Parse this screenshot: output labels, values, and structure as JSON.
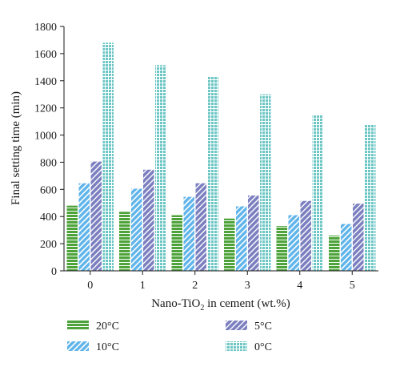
{
  "chart_data": {
    "type": "bar",
    "categories": [
      "0",
      "1",
      "2",
      "3",
      "4",
      "5"
    ],
    "series": [
      {
        "name": "20°C",
        "color": "#4da33a",
        "pattern": "horizontal-lines",
        "values": [
          480,
          435,
          410,
          385,
          330,
          260
        ]
      },
      {
        "name": "10°C",
        "color": "#5fb4ea",
        "pattern": "diagonal-lines",
        "values": [
          645,
          605,
          545,
          475,
          410,
          345
        ]
      },
      {
        "name": "5°C",
        "color": "#7b7fbf",
        "pattern": "diagonal-lines",
        "values": [
          805,
          745,
          645,
          555,
          515,
          495
        ]
      },
      {
        "name": "0°C",
        "color": "#6cc6c4",
        "pattern": "grid",
        "values": [
          1680,
          1515,
          1430,
          1300,
          1150,
          1080
        ]
      }
    ],
    "xlabel_prefix": "Nano-TiO",
    "xlabel_subscript": "2",
    "xlabel_suffix": " in cement (wt.%)",
    "ylabel": "Final setting time (min)",
    "ylim": [
      0,
      1800
    ],
    "yticks": [
      0,
      200,
      400,
      600,
      800,
      1000,
      1200,
      1400,
      1600,
      1800
    ],
    "grid": false,
    "legend_position": "bottom"
  }
}
